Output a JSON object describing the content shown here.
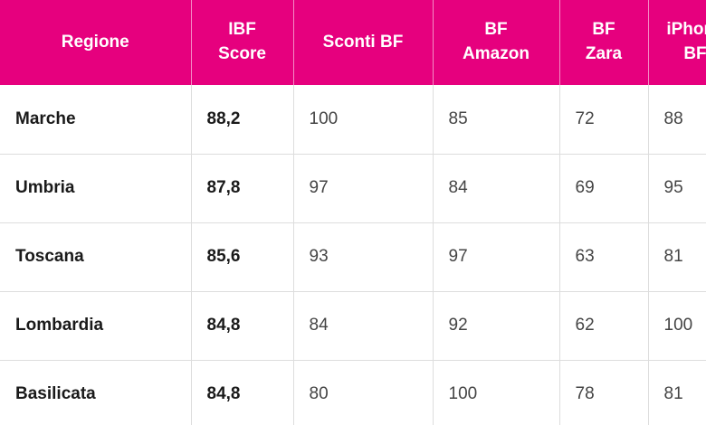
{
  "table": {
    "accent_color": "#e6007e",
    "headers": [
      {
        "lines": [
          "Regione"
        ]
      },
      {
        "lines": [
          "IBF",
          "Score"
        ]
      },
      {
        "lines": [
          "Sconti BF"
        ]
      },
      {
        "lines": [
          "BF",
          "Amazon"
        ]
      },
      {
        "lines": [
          "BF",
          "Zara"
        ]
      },
      {
        "lines": [
          "iPhone",
          "BF"
        ]
      }
    ],
    "rows": [
      {
        "region": "Marche",
        "score": "88,2",
        "sconti": "100",
        "amazon": "85",
        "zara": "72",
        "iphone": "88"
      },
      {
        "region": "Umbria",
        "score": "87,8",
        "sconti": "97",
        "amazon": "84",
        "zara": "69",
        "iphone": "95"
      },
      {
        "region": "Toscana",
        "score": "85,6",
        "sconti": "93",
        "amazon": "97",
        "zara": "63",
        "iphone": "81"
      },
      {
        "region": "Lombardia",
        "score": "84,8",
        "sconti": "84",
        "amazon": "92",
        "zara": "62",
        "iphone": "100"
      },
      {
        "region": "Basilicata",
        "score": "84,8",
        "sconti": "80",
        "amazon": "100",
        "zara": "78",
        "iphone": "81"
      }
    ]
  }
}
